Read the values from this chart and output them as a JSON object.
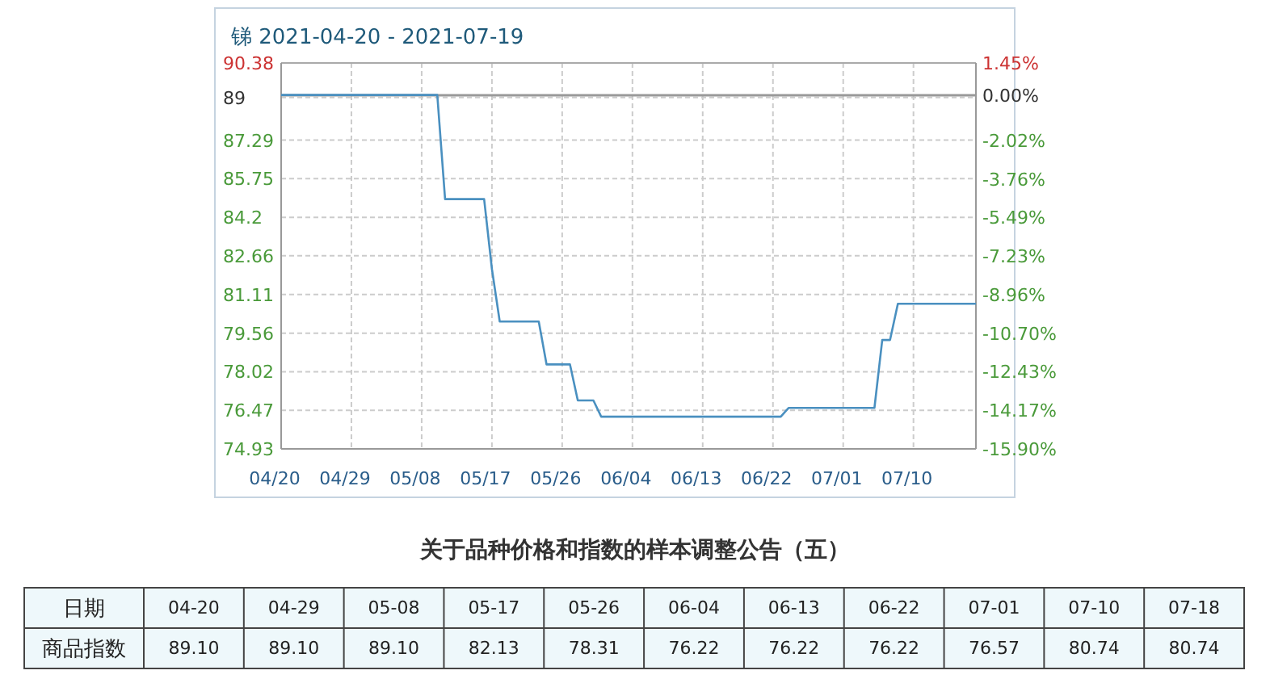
{
  "chart_data": [
    {
      "type": "line",
      "title": "锑 2021-04-20 - 2021-07-19",
      "x": [
        "2021-04-20",
        "2021-05-10",
        "2021-05-11",
        "2021-05-16",
        "2021-05-17",
        "2021-05-18",
        "2021-05-23",
        "2021-05-24",
        "2021-05-27",
        "2021-05-28",
        "2021-05-30",
        "2021-05-31",
        "2021-06-23",
        "2021-06-24",
        "2021-07-05",
        "2021-07-06",
        "2021-07-07",
        "2021-07-08",
        "2021-07-18"
      ],
      "series": [
        {
          "color": "#4a90c0",
          "values": [
            89.1,
            89.1,
            84.93,
            84.93,
            82.13,
            80.03,
            80.03,
            78.31,
            78.31,
            76.87,
            76.87,
            76.22,
            76.22,
            76.57,
            76.57,
            79.29,
            79.29,
            80.74,
            80.74
          ]
        }
      ],
      "xlim": [
        "2021-04-20",
        "2021-07-18"
      ],
      "xticks": [
        {
          "value": "2021-04-20",
          "label": "04/20"
        },
        {
          "value": "2021-04-29",
          "label": "04/29"
        },
        {
          "value": "2021-05-08",
          "label": "05/08"
        },
        {
          "value": "2021-05-17",
          "label": "05/17"
        },
        {
          "value": "2021-05-26",
          "label": "05/26"
        },
        {
          "value": "2021-06-04",
          "label": "06/04"
        },
        {
          "value": "2021-06-13",
          "label": "06/13"
        },
        {
          "value": "2021-06-22",
          "label": "06/22"
        },
        {
          "value": "2021-07-01",
          "label": "07/01"
        },
        {
          "value": "2021-07-10",
          "label": "07/10"
        }
      ],
      "ylim": [
        74.93,
        90.38
      ],
      "yticks": [
        74.93,
        76.47,
        78.02,
        79.56,
        81.11,
        82.66,
        84.2,
        85.75,
        87.29,
        89,
        90.38
      ],
      "y2lim": [
        -15.9,
        1.45
      ],
      "y2ticks": [
        {
          "value": -15.9,
          "label": "-15.90%"
        },
        {
          "value": -14.17,
          "label": "-14.17%"
        },
        {
          "value": -12.43,
          "label": "-12.43%"
        },
        {
          "value": -10.7,
          "label": "-10.70%"
        },
        {
          "value": -8.96,
          "label": "-8.96%"
        },
        {
          "value": -7.23,
          "label": "-7.23%"
        },
        {
          "value": -5.49,
          "label": "-5.49%"
        },
        {
          "value": -3.76,
          "label": "-3.76%"
        },
        {
          "value": -2.02,
          "label": "-2.02%"
        },
        {
          "value": 0,
          "label": "0.00%"
        },
        {
          "value": 1.45,
          "label": "1.45%"
        }
      ],
      "ref_lines": [
        {
          "axis": "y2",
          "value": 0,
          "color": "#999999"
        }
      ],
      "grid": true,
      "marker": "none",
      "line_style": "solid"
    },
    {
      "type": "other",
      "title": "关于品种价格和指数的样本调整公告（五）",
      "xlabel": "日期",
      "ylabel": "商品指数",
      "categories": [
        "04-20",
        "04-29",
        "05-08",
        "05-17",
        "05-26",
        "06-04",
        "06-13",
        "06-22",
        "07-01",
        "07-10",
        "07-18"
      ],
      "value_labels": [
        "89.10",
        "89.10",
        "89.10",
        "82.13",
        "78.31",
        "76.22",
        "76.22",
        "76.22",
        "76.57",
        "80.74",
        "80.74"
      ]
    }
  ]
}
